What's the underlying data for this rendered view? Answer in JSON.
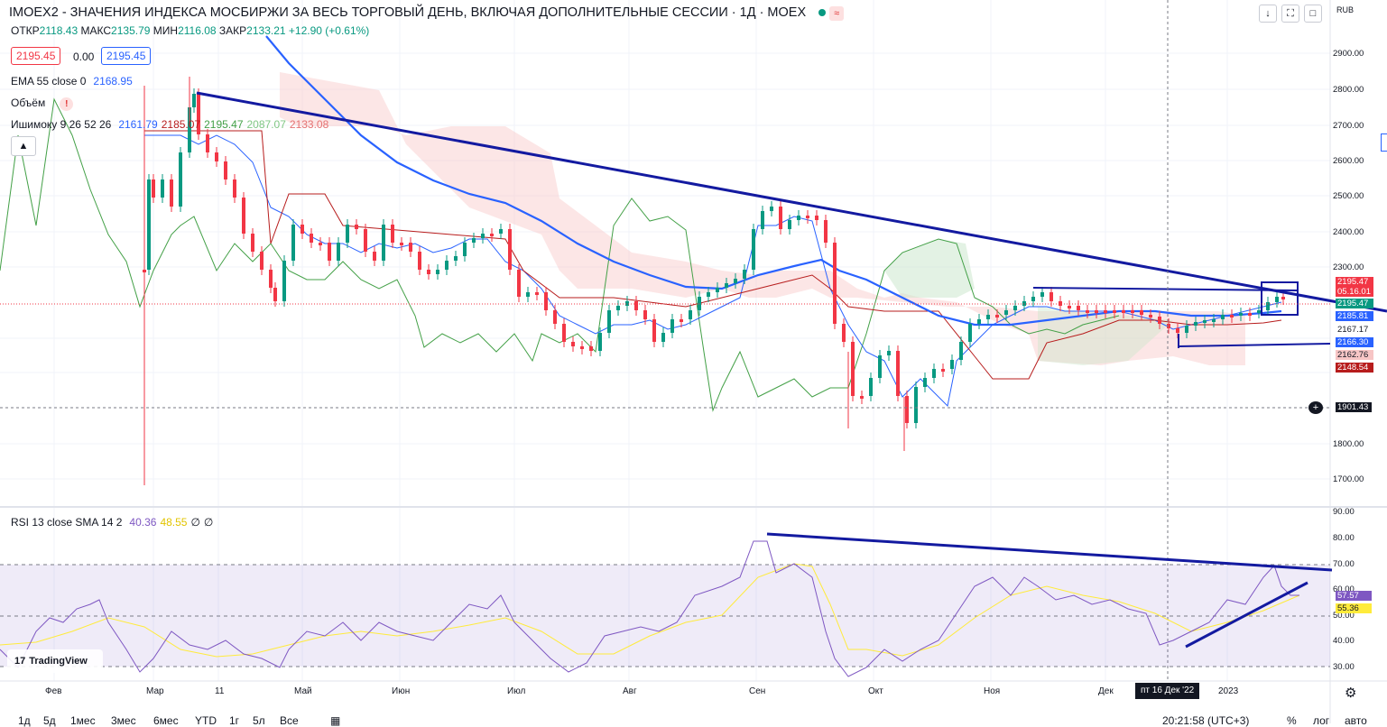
{
  "header": {
    "title": "IMOEX2 - ЗНАЧЕНИЯ ИНДЕКСА МОСБИРЖИ ЗА ВЕСЬ ТОРГОВЫЙ ДЕНЬ, ВКЛЮЧАЯ ДОПОЛНИТЕЛЬНЫЕ СЕССИИ · 1Д · MOEX",
    "currency": "RUB"
  },
  "ohlc": {
    "open_label": "ОТКР",
    "open": "2118.43",
    "high_label": "МАКС",
    "high": "2135.79",
    "low_label": "МИН",
    "low": "2116.08",
    "close_label": "ЗАКР",
    "close": "2133.21",
    "change": "+12.90 (+0.61%)"
  },
  "price_boxes": {
    "sell": "2195.45",
    "buy": "2195.45"
  },
  "indicators": {
    "ema": {
      "name": "EMA 55 close 0",
      "value": "2168.95"
    },
    "volume": {
      "name": "Объём"
    },
    "ichimoku": {
      "name": "Ишимоку 9 26 52 26",
      "v1": "2161.79",
      "v2": "2185.07",
      "v3": "2195.47",
      "v4": "2087.07",
      "v5": "2133.08"
    },
    "rsi": {
      "name": "RSI 13 close SMA 14 2",
      "v1": "40.36",
      "v2": "48.55",
      "v3": "∅",
      "v4": "∅"
    }
  },
  "price_scale": [
    "2900.00",
    "2800.00",
    "2700.00",
    "2600.00",
    "2500.00",
    "2400.00",
    "2300.00",
    "1800.00",
    "1700.00"
  ],
  "rsi_scale": [
    "90.00",
    "80.00",
    "70.00",
    "60.00",
    "50.00",
    "40.00",
    "30.00"
  ],
  "price_labels": [
    {
      "text": "2195.47",
      "color": "#f23645"
    },
    {
      "text": "05.16.01",
      "color": "#f23645"
    },
    {
      "text": "2195.47",
      "color": "#089981"
    },
    {
      "text": "2185.81",
      "color": "#2962ff"
    },
    {
      "text": "2167.17",
      "color": "#ffffff"
    },
    {
      "text": "2166.30",
      "color": "#2962ff"
    },
    {
      "text": "2162.76",
      "color": "#f7c5c5"
    },
    {
      "text": "2148.54",
      "color": "#b71c1c"
    }
  ],
  "crosshair_price": "1901.43",
  "rsi_labels": [
    {
      "text": "57.57",
      "color": "#7e57c2"
    },
    {
      "text": "55.36",
      "color": "#ffeb3b"
    }
  ],
  "time_labels": [
    "Фев",
    "Мар",
    "11",
    "Май",
    "Июн",
    "Июл",
    "Авг",
    "Сен",
    "Окт",
    "Ноя",
    "Дек",
    "2023"
  ],
  "crosshair_date": "пт 16 Дек '22",
  "timeframes": [
    "1д",
    "5д",
    "1мес",
    "3мес",
    "6мес",
    "YTD",
    "1г",
    "5л",
    "Все"
  ],
  "footer": {
    "clock": "20:21:58 (UTC+3)",
    "percent": "%",
    "log": "лог",
    "auto": "авто"
  },
  "logo": "TradingView",
  "colors": {
    "candle_up": "#089981",
    "candle_down": "#f23645",
    "ema": "#2962ff",
    "trend": "#131aa0",
    "rsi": "#7e57c2",
    "rsi_sma": "#ffeb3b"
  }
}
